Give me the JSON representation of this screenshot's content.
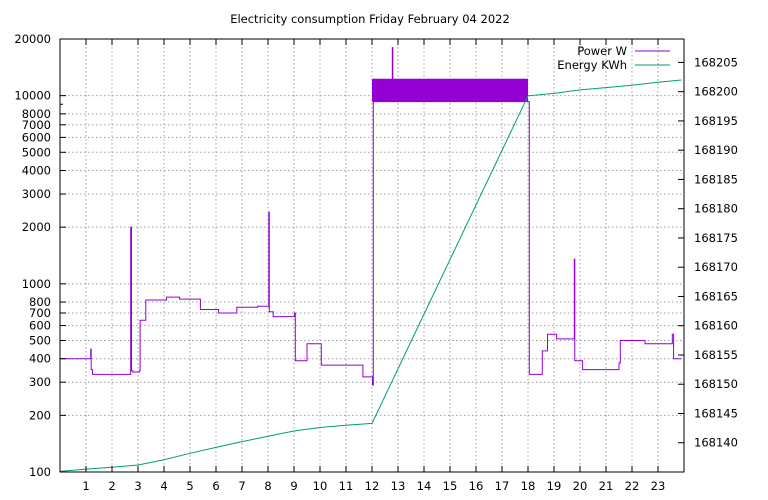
{
  "chart_data": {
    "type": "line",
    "title": "Electricity consumption Friday February 04 2022",
    "xlabel": "",
    "ylabel": "",
    "y2label": "",
    "grid": true,
    "legend_position": "top-right",
    "x": {
      "range": [
        0,
        24
      ],
      "tick_labels": [
        "1",
        "2",
        "3",
        "4",
        "5",
        "6",
        "7",
        "8",
        "9",
        "10",
        "11",
        "12",
        "13",
        "14",
        "15",
        "16",
        "17",
        "18",
        "19",
        "20",
        "21",
        "22",
        "23"
      ]
    },
    "y_left": {
      "scale": "log",
      "range": [
        100,
        20000
      ],
      "tick_labels": [
        "100",
        "200",
        "300",
        "400",
        "500",
        "600",
        "700",
        "800",
        "1000",
        "2000",
        "3000",
        "4000",
        "5000",
        "6000",
        "7000",
        "8000",
        "10000",
        "20000"
      ]
    },
    "y_right": {
      "scale": "linear",
      "range": [
        168135,
        168209
      ],
      "tick_labels": [
        "168140",
        "168145",
        "168150",
        "168155",
        "168160",
        "168165",
        "168170",
        "168175",
        "168180",
        "168185",
        "168190",
        "168195",
        "168200",
        "168205"
      ]
    },
    "series": [
      {
        "name": "Power W",
        "axis": "left",
        "color": "#9400d3",
        "step": true,
        "points": [
          [
            0,
            400
          ],
          [
            1.15,
            400
          ],
          [
            1.18,
            450
          ],
          [
            1.2,
            350
          ],
          [
            1.25,
            330
          ],
          [
            2.4,
            330
          ],
          [
            2.7,
            330
          ],
          [
            2.72,
            2000
          ],
          [
            2.75,
            345
          ],
          [
            2.8,
            340
          ],
          [
            3.05,
            345
          ],
          [
            3.08,
            640
          ],
          [
            3.3,
            820
          ],
          [
            4.0,
            820
          ],
          [
            4.1,
            850
          ],
          [
            4.6,
            830
          ],
          [
            5.0,
            830
          ],
          [
            5.4,
            730
          ],
          [
            5.8,
            730
          ],
          [
            6.1,
            700
          ],
          [
            6.8,
            750
          ],
          [
            7.6,
            760
          ],
          [
            8.0,
            760
          ],
          [
            8.03,
            2400
          ],
          [
            8.05,
            710
          ],
          [
            8.2,
            670
          ],
          [
            9.0,
            670
          ],
          [
            9.02,
            700
          ],
          [
            9.05,
            390
          ],
          [
            9.5,
            480
          ],
          [
            10.0,
            480
          ],
          [
            10.05,
            370
          ],
          [
            11.6,
            370
          ],
          [
            11.65,
            320
          ],
          [
            12.0,
            320
          ],
          [
            12.02,
            290
          ],
          [
            12.05,
            9300
          ],
          [
            12.6,
            9300
          ],
          [
            12.75,
            9300
          ],
          [
            12.78,
            18000
          ],
          [
            12.8,
            9300
          ],
          [
            18.0,
            9300
          ],
          [
            18.05,
            330
          ],
          [
            18.5,
            330
          ],
          [
            18.55,
            440
          ],
          [
            18.75,
            540
          ],
          [
            19.1,
            510
          ],
          [
            19.75,
            510
          ],
          [
            19.78,
            1350
          ],
          [
            19.8,
            390
          ],
          [
            20.1,
            350
          ],
          [
            21.4,
            350
          ],
          [
            21.5,
            380
          ],
          [
            21.55,
            500
          ],
          [
            22.0,
            500
          ],
          [
            22.5,
            480
          ],
          [
            23.5,
            480
          ],
          [
            23.55,
            540
          ],
          [
            23.6,
            400
          ],
          [
            23.9,
            400
          ]
        ]
      },
      {
        "name": "Energy KWh",
        "axis": "right",
        "color": "#009e73",
        "step": false,
        "points": [
          [
            0,
            168135.1
          ],
          [
            1,
            168135.5
          ],
          [
            2,
            168135.8
          ],
          [
            3,
            168136.2
          ],
          [
            4,
            168137.1
          ],
          [
            5,
            168138.2
          ],
          [
            6,
            168139.2
          ],
          [
            7,
            168140.2
          ],
          [
            8,
            168141.1
          ],
          [
            9,
            168142.0
          ],
          [
            10,
            168142.6
          ],
          [
            11,
            168143.0
          ],
          [
            12,
            168143.3
          ],
          [
            18,
            168199.3
          ],
          [
            19,
            168199.7
          ],
          [
            20,
            168200.3
          ],
          [
            21,
            168200.7
          ],
          [
            22,
            168201.1
          ],
          [
            23,
            168201.6
          ],
          [
            23.9,
            168202.0
          ]
        ]
      }
    ],
    "band": {
      "series": "Power W",
      "x_range": [
        12.0,
        18.0
      ],
      "y_range": [
        9300,
        12300
      ],
      "color": "#9400d3"
    }
  }
}
